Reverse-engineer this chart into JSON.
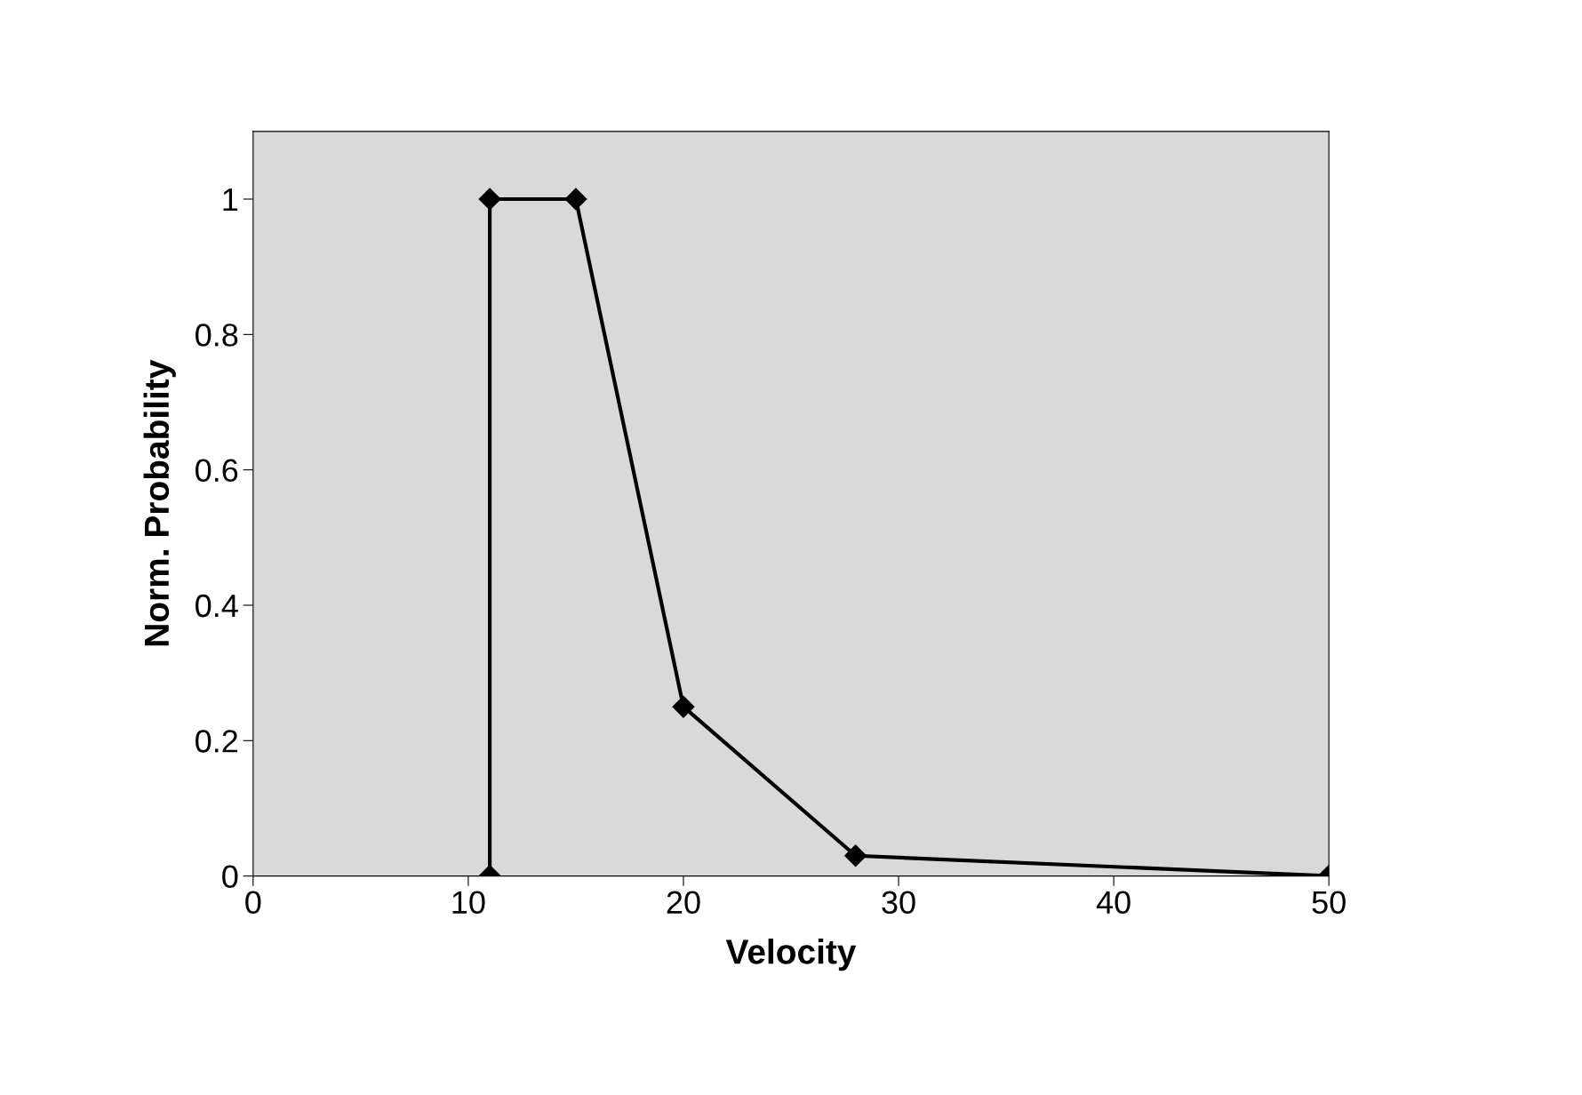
{
  "chart_data": {
    "type": "line",
    "xlabel": "Velocity",
    "ylabel": "Norm. Probability",
    "x": [
      11,
      11,
      15,
      20,
      28,
      50
    ],
    "series": [
      {
        "color": "#000000",
        "values": [
          0,
          1,
          1,
          0.25,
          0.03,
          0
        ]
      }
    ],
    "xlim": [
      0,
      50
    ],
    "xticks": [
      0,
      10,
      20,
      30,
      40,
      50
    ],
    "ylim": [
      0,
      1.1
    ],
    "yticks": [
      0,
      0.2,
      0.4,
      0.6,
      0.8,
      1
    ],
    "grid": false,
    "legend": false,
    "marker": "diamond",
    "line_style": "solid"
  }
}
